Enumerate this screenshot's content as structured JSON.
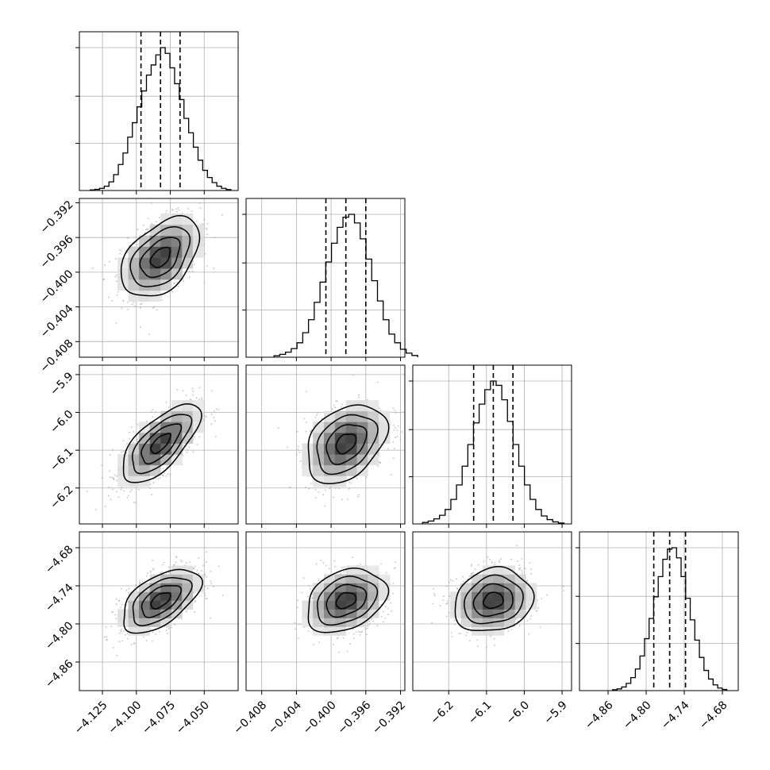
{
  "chart_data": {
    "type": "corner",
    "parameters": [
      {
        "range": [
          -4.142,
          -4.025
        ],
        "ticks": [
          -4.125,
          -4.1,
          -4.075,
          -4.05
        ],
        "tick_labels": [
          "−4.125",
          "−4.100",
          "−4.075",
          "−4.050"
        ],
        "quantiles": [
          -4.0966,
          -4.0822,
          -4.0678
        ],
        "histogram": [
          0.004,
          0.008,
          0.015,
          0.03,
          0.06,
          0.11,
          0.18,
          0.26,
          0.37,
          0.47,
          0.58,
          0.69,
          0.8,
          0.87,
          0.94,
          0.99,
          0.95,
          0.85,
          0.74,
          0.63,
          0.5,
          0.4,
          0.3,
          0.21,
          0.14,
          0.09,
          0.055,
          0.03,
          0.015,
          0.007
        ],
        "mean": -4.0822,
        "sigma": 0.0144
      },
      {
        "range": [
          -0.4098,
          -0.3915
        ],
        "ticks": [
          -0.408,
          -0.404,
          -0.4,
          -0.396,
          -0.392
        ],
        "tick_labels": [
          "−0.408",
          "−0.404",
          "−0.400",
          "−0.396",
          "−0.392"
        ],
        "quantiles": [
          -0.4006,
          -0.3983,
          -0.396
        ],
        "histogram": [
          0.01,
          0.02,
          0.035,
          0.06,
          0.1,
          0.17,
          0.26,
          0.38,
          0.52,
          0.66,
          0.79,
          0.9,
          0.97,
          0.99,
          0.93,
          0.82,
          0.68,
          0.53,
          0.39,
          0.26,
          0.16,
          0.1,
          0.055,
          0.028,
          0.012
        ],
        "mean": -0.3983,
        "sigma": 0.0023
      },
      {
        "range": [
          -6.295,
          -5.875
        ],
        "ticks": [
          -6.2,
          -6.1,
          -6.0,
          -5.9
        ],
        "tick_labels": [
          "−6.2",
          "−6.1",
          "−6.0",
          "−5.9"
        ],
        "quantiles": [
          -6.134,
          -6.082,
          -6.03
        ],
        "histogram": [
          0.01,
          0.02,
          0.035,
          0.06,
          0.1,
          0.17,
          0.27,
          0.4,
          0.55,
          0.7,
          0.83,
          0.93,
          0.99,
          0.96,
          0.86,
          0.71,
          0.55,
          0.4,
          0.27,
          0.17,
          0.1,
          0.055,
          0.03,
          0.014,
          0.006
        ],
        "mean": -6.082,
        "sigma": 0.052
      },
      {
        "range": [
          -4.905,
          -4.655
        ],
        "ticks": [
          -4.86,
          -4.8,
          -4.74,
          -4.68
        ],
        "tick_labels": [
          "−4.86",
          "−4.80",
          "−4.74",
          "−4.68"
        ],
        "quantiles": [
          -4.788,
          -4.763,
          -4.738
        ],
        "histogram": [
          0.006,
          0.012,
          0.025,
          0.05,
          0.09,
          0.15,
          0.24,
          0.36,
          0.5,
          0.65,
          0.79,
          0.91,
          0.98,
          0.99,
          0.92,
          0.79,
          0.64,
          0.49,
          0.35,
          0.23,
          0.14,
          0.08,
          0.04,
          0.018,
          0.008
        ],
        "mean": -4.763,
        "sigma": 0.025
      }
    ],
    "correlations": [
      [
        1,
        0.45,
        0.68,
        0.55
      ],
      [
        0.45,
        1,
        0.35,
        0.3
      ],
      [
        0.68,
        0.35,
        1,
        0.15
      ],
      [
        0.55,
        0.3,
        0.15,
        1
      ]
    ],
    "contour_levels_sigma": [
      0.5,
      1.0,
      1.5,
      2.0
    ],
    "grid": true,
    "colors": {
      "line": "#000000",
      "grid": "#b0b0b0",
      "scatter": "#9a9a9a"
    }
  }
}
